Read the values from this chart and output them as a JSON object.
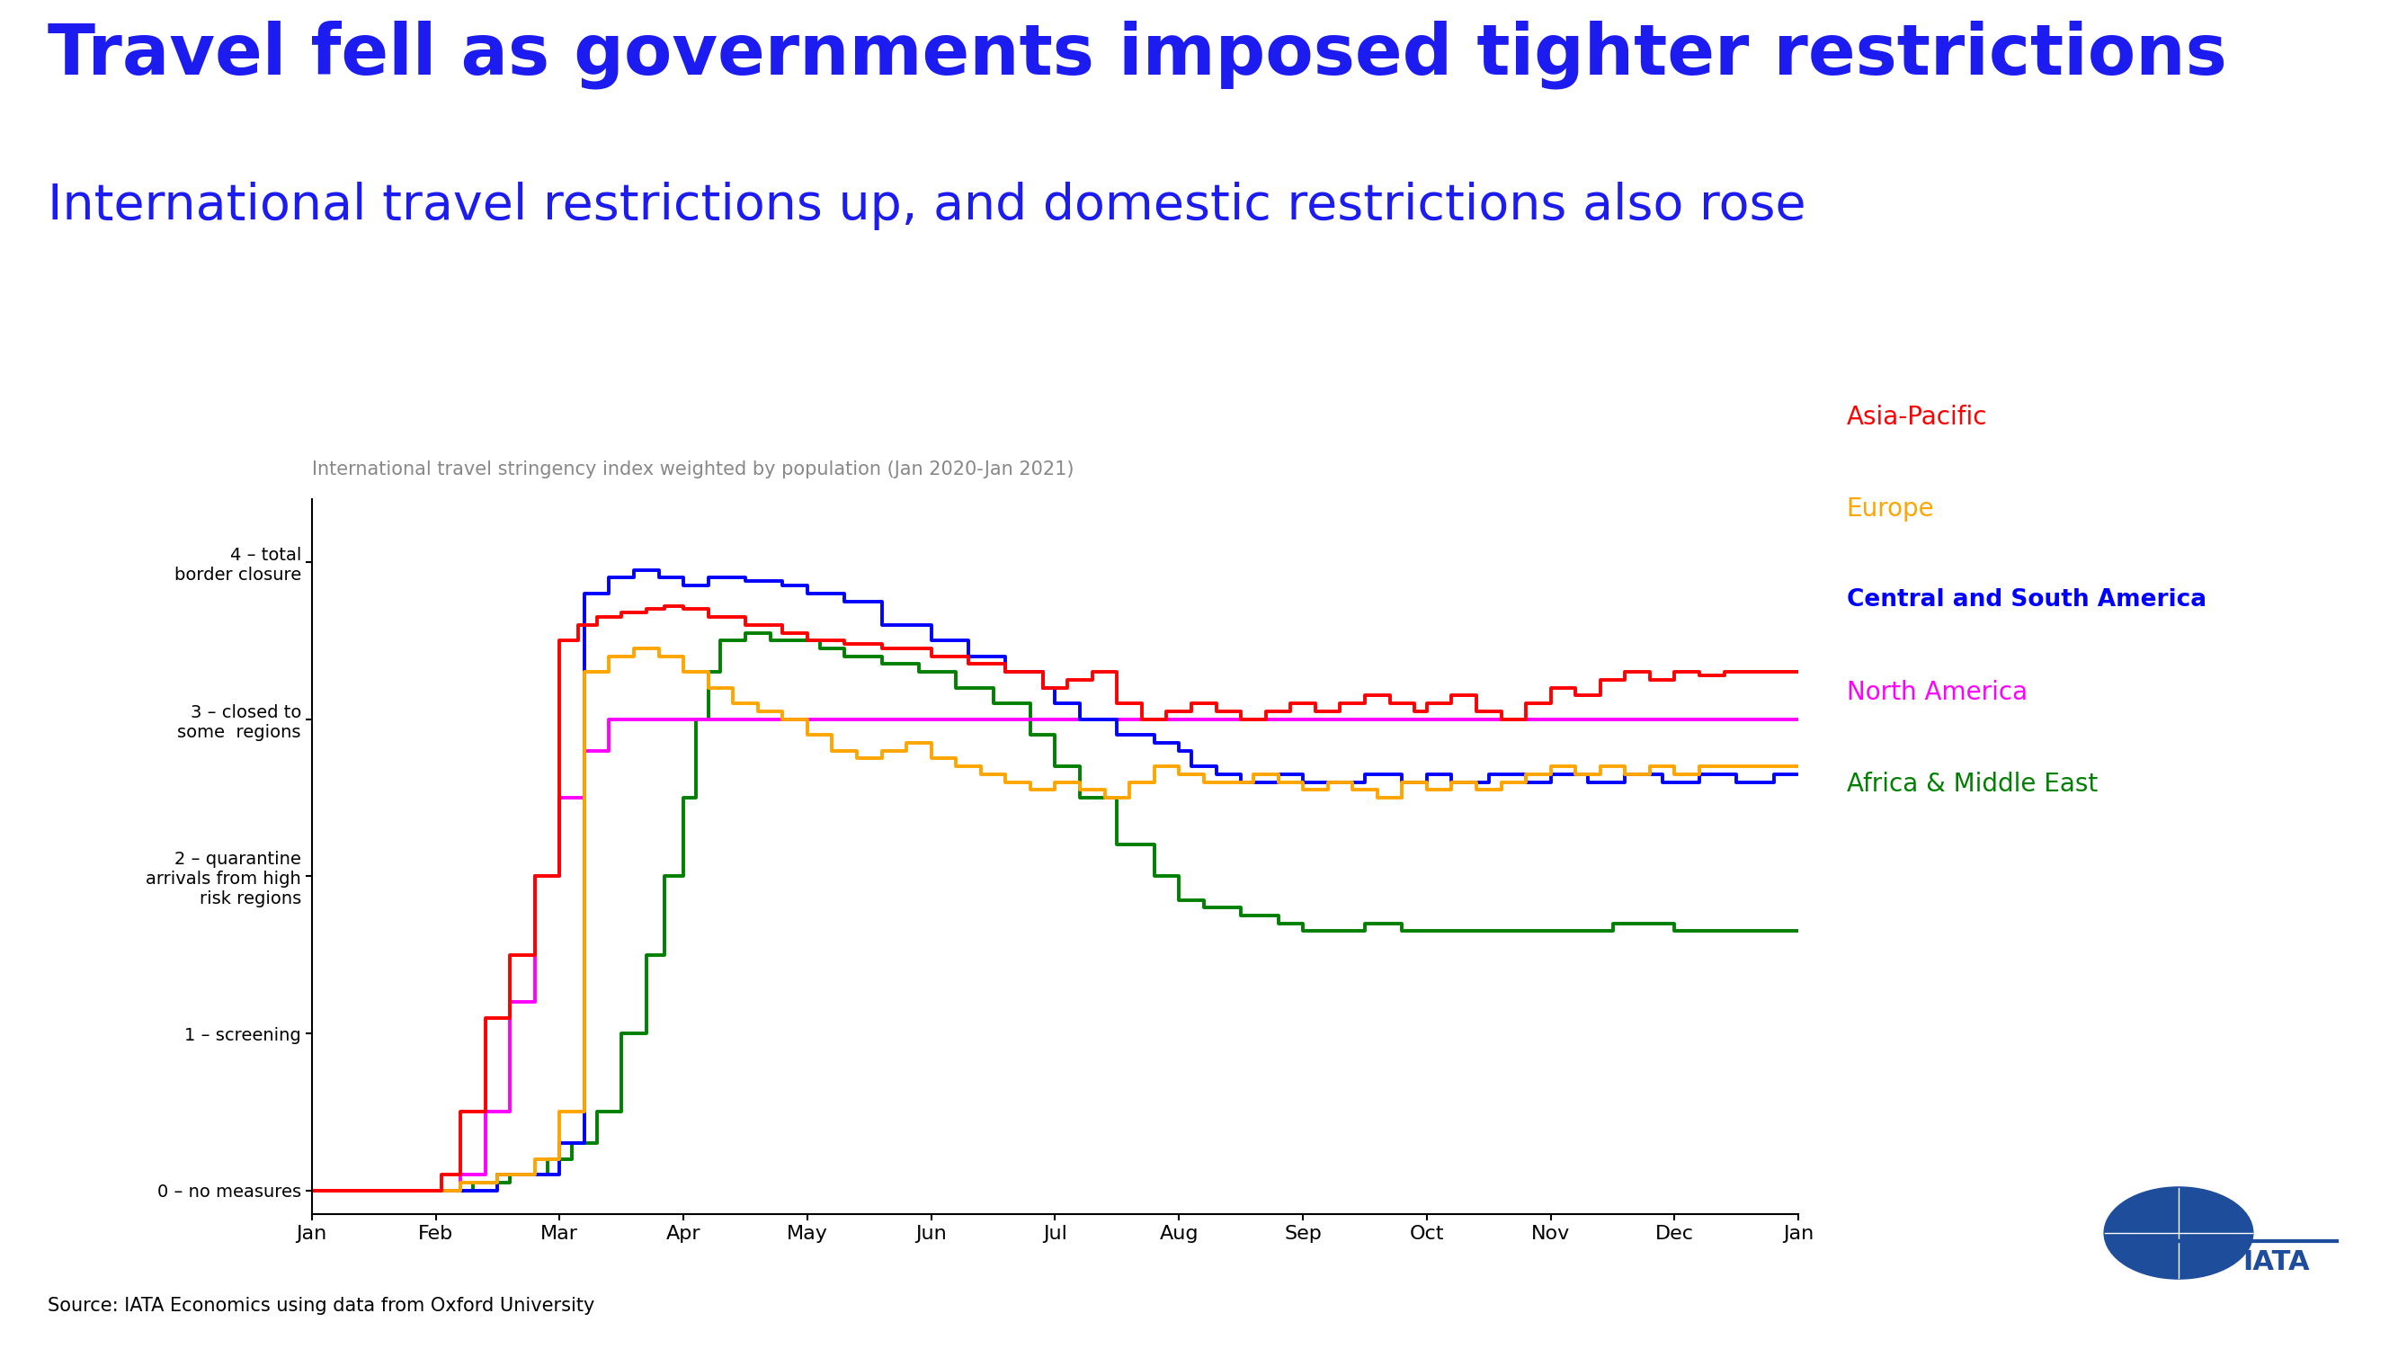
{
  "title": "Travel fell as governments imposed tighter restrictions",
  "subtitle": "International travel restrictions up, and domestic restrictions also rose",
  "axis_label": "International travel stringency index weighted by population (Jan 2020-Jan 2021)",
  "source": "Source: IATA Economics using data from Oxford University",
  "title_color": "#1c1cf0",
  "subtitle_color": "#1c1cf0",
  "axis_label_color": "#888888",
  "background_color": "#ffffff",
  "ytick_labels": [
    "0 – no measures",
    "1 – screening",
    "2 – quarantine\narrivals from high\nrisk regions",
    "3 – closed to\nsome  regions",
    "4 – total\nborder closure"
  ],
  "ytick_values": [
    0,
    1,
    2,
    3,
    4
  ],
  "xtick_labels": [
    "Jan",
    "Feb",
    "Mar",
    "Apr",
    "May",
    "Jun",
    "Jul",
    "Aug",
    "Sep",
    "Oct",
    "Nov",
    "Dec",
    "Jan"
  ],
  "legend": [
    {
      "label": "Asia-Pacific",
      "color": "#ff0000"
    },
    {
      "label": "Europe",
      "color": "#ffa500"
    },
    {
      "label": "Central and South America",
      "color": "#0000ff"
    },
    {
      "label": "North America",
      "color": "#ff00ff"
    },
    {
      "label": "Africa & Middle East",
      "color": "#008000"
    }
  ],
  "series": {
    "Asia-Pacific": {
      "color": "#ff0000",
      "t": [
        0,
        0.9,
        1.05,
        1.2,
        1.4,
        1.6,
        1.8,
        2.0,
        2.15,
        2.3,
        2.5,
        2.7,
        2.85,
        3.0,
        3.2,
        3.5,
        3.8,
        4.0,
        4.3,
        4.6,
        5.0,
        5.3,
        5.6,
        5.9,
        6.1,
        6.3,
        6.5,
        6.7,
        6.9,
        7.1,
        7.3,
        7.5,
        7.7,
        7.9,
        8.1,
        8.3,
        8.5,
        8.7,
        8.9,
        9.0,
        9.2,
        9.4,
        9.6,
        9.8,
        10.0,
        10.2,
        10.4,
        10.6,
        10.8,
        11.0,
        11.2,
        11.4,
        11.6,
        11.8,
        12.0
      ],
      "v": [
        0,
        0,
        0.1,
        0.5,
        1.1,
        1.5,
        2.0,
        3.5,
        3.6,
        3.65,
        3.68,
        3.7,
        3.72,
        3.7,
        3.65,
        3.6,
        3.55,
        3.5,
        3.48,
        3.45,
        3.4,
        3.35,
        3.3,
        3.2,
        3.25,
        3.3,
        3.1,
        3.0,
        3.05,
        3.1,
        3.05,
        3.0,
        3.05,
        3.1,
        3.05,
        3.1,
        3.15,
        3.1,
        3.05,
        3.1,
        3.15,
        3.05,
        3.0,
        3.1,
        3.2,
        3.15,
        3.25,
        3.3,
        3.25,
        3.3,
        3.28,
        3.3,
        3.3,
        3.3,
        3.3
      ]
    },
    "Europe": {
      "color": "#ffa500",
      "t": [
        0,
        1.0,
        1.2,
        1.5,
        1.8,
        2.0,
        2.2,
        2.4,
        2.6,
        2.8,
        3.0,
        3.2,
        3.4,
        3.6,
        3.8,
        4.0,
        4.2,
        4.4,
        4.6,
        4.8,
        5.0,
        5.2,
        5.4,
        5.6,
        5.8,
        6.0,
        6.2,
        6.4,
        6.6,
        6.8,
        7.0,
        7.2,
        7.4,
        7.6,
        7.8,
        8.0,
        8.2,
        8.4,
        8.6,
        8.8,
        9.0,
        9.2,
        9.4,
        9.6,
        9.8,
        10.0,
        10.2,
        10.4,
        10.6,
        10.8,
        11.0,
        11.2,
        11.4,
        11.6,
        11.8,
        12.0
      ],
      "v": [
        0,
        0,
        0.05,
        0.1,
        0.2,
        0.5,
        3.3,
        3.4,
        3.45,
        3.4,
        3.3,
        3.2,
        3.1,
        3.05,
        3.0,
        2.9,
        2.8,
        2.75,
        2.8,
        2.85,
        2.75,
        2.7,
        2.65,
        2.6,
        2.55,
        2.6,
        2.55,
        2.5,
        2.6,
        2.7,
        2.65,
        2.6,
        2.6,
        2.65,
        2.6,
        2.55,
        2.6,
        2.55,
        2.5,
        2.6,
        2.55,
        2.6,
        2.55,
        2.6,
        2.65,
        2.7,
        2.65,
        2.7,
        2.65,
        2.7,
        2.65,
        2.7,
        2.7,
        2.7,
        2.7,
        2.7
      ]
    },
    "Central and South America": {
      "color": "#0000ff",
      "t": [
        0,
        1.0,
        1.5,
        2.0,
        2.2,
        2.4,
        2.6,
        2.8,
        3.0,
        3.2,
        3.5,
        3.8,
        4.0,
        4.3,
        4.6,
        5.0,
        5.3,
        5.6,
        5.9,
        6.0,
        6.2,
        6.5,
        6.8,
        7.0,
        7.1,
        7.3,
        7.5,
        7.8,
        8.0,
        8.2,
        8.5,
        8.8,
        9.0,
        9.2,
        9.5,
        9.8,
        10.0,
        10.3,
        10.6,
        10.9,
        11.2,
        11.5,
        11.8,
        12.0
      ],
      "v": [
        0,
        0,
        0.1,
        0.3,
        3.8,
        3.9,
        3.95,
        3.9,
        3.85,
        3.9,
        3.88,
        3.85,
        3.8,
        3.75,
        3.6,
        3.5,
        3.4,
        3.3,
        3.2,
        3.1,
        3.0,
        2.9,
        2.85,
        2.8,
        2.7,
        2.65,
        2.6,
        2.65,
        2.6,
        2.6,
        2.65,
        2.6,
        2.65,
        2.6,
        2.65,
        2.6,
        2.65,
        2.6,
        2.65,
        2.6,
        2.65,
        2.6,
        2.65,
        2.65
      ]
    },
    "North America": {
      "color": "#ff00ff",
      "t": [
        0,
        1.0,
        1.2,
        1.4,
        1.6,
        1.8,
        2.0,
        2.2,
        2.4,
        2.6,
        2.8,
        3.0,
        4.0,
        5.0,
        6.0,
        7.0,
        7.5,
        8.0,
        9.0,
        10.0,
        11.0,
        12.0
      ],
      "v": [
        0,
        0,
        0.1,
        0.5,
        1.2,
        2.0,
        2.5,
        2.8,
        3.0,
        3.0,
        3.0,
        3.0,
        3.0,
        3.0,
        3.0,
        3.0,
        3.0,
        3.0,
        3.0,
        3.0,
        3.0,
        3.0
      ]
    },
    "Africa & Middle East": {
      "color": "#008000",
      "t": [
        0,
        1.0,
        1.3,
        1.6,
        1.9,
        2.1,
        2.3,
        2.5,
        2.7,
        2.85,
        3.0,
        3.1,
        3.2,
        3.3,
        3.5,
        3.7,
        3.9,
        4.1,
        4.3,
        4.6,
        4.9,
        5.2,
        5.5,
        5.8,
        6.0,
        6.2,
        6.5,
        6.8,
        7.0,
        7.2,
        7.5,
        7.8,
        8.0,
        8.2,
        8.5,
        8.8,
        9.0,
        9.5,
        10.0,
        10.5,
        11.0,
        11.5,
        12.0
      ],
      "v": [
        0,
        0,
        0.05,
        0.1,
        0.2,
        0.3,
        0.5,
        1.0,
        1.5,
        2.0,
        2.5,
        3.0,
        3.3,
        3.5,
        3.55,
        3.5,
        3.5,
        3.45,
        3.4,
        3.35,
        3.3,
        3.2,
        3.1,
        2.9,
        2.7,
        2.5,
        2.2,
        2.0,
        1.85,
        1.8,
        1.75,
        1.7,
        1.65,
        1.65,
        1.7,
        1.65,
        1.65,
        1.65,
        1.65,
        1.7,
        1.65,
        1.65,
        1.65
      ]
    }
  }
}
